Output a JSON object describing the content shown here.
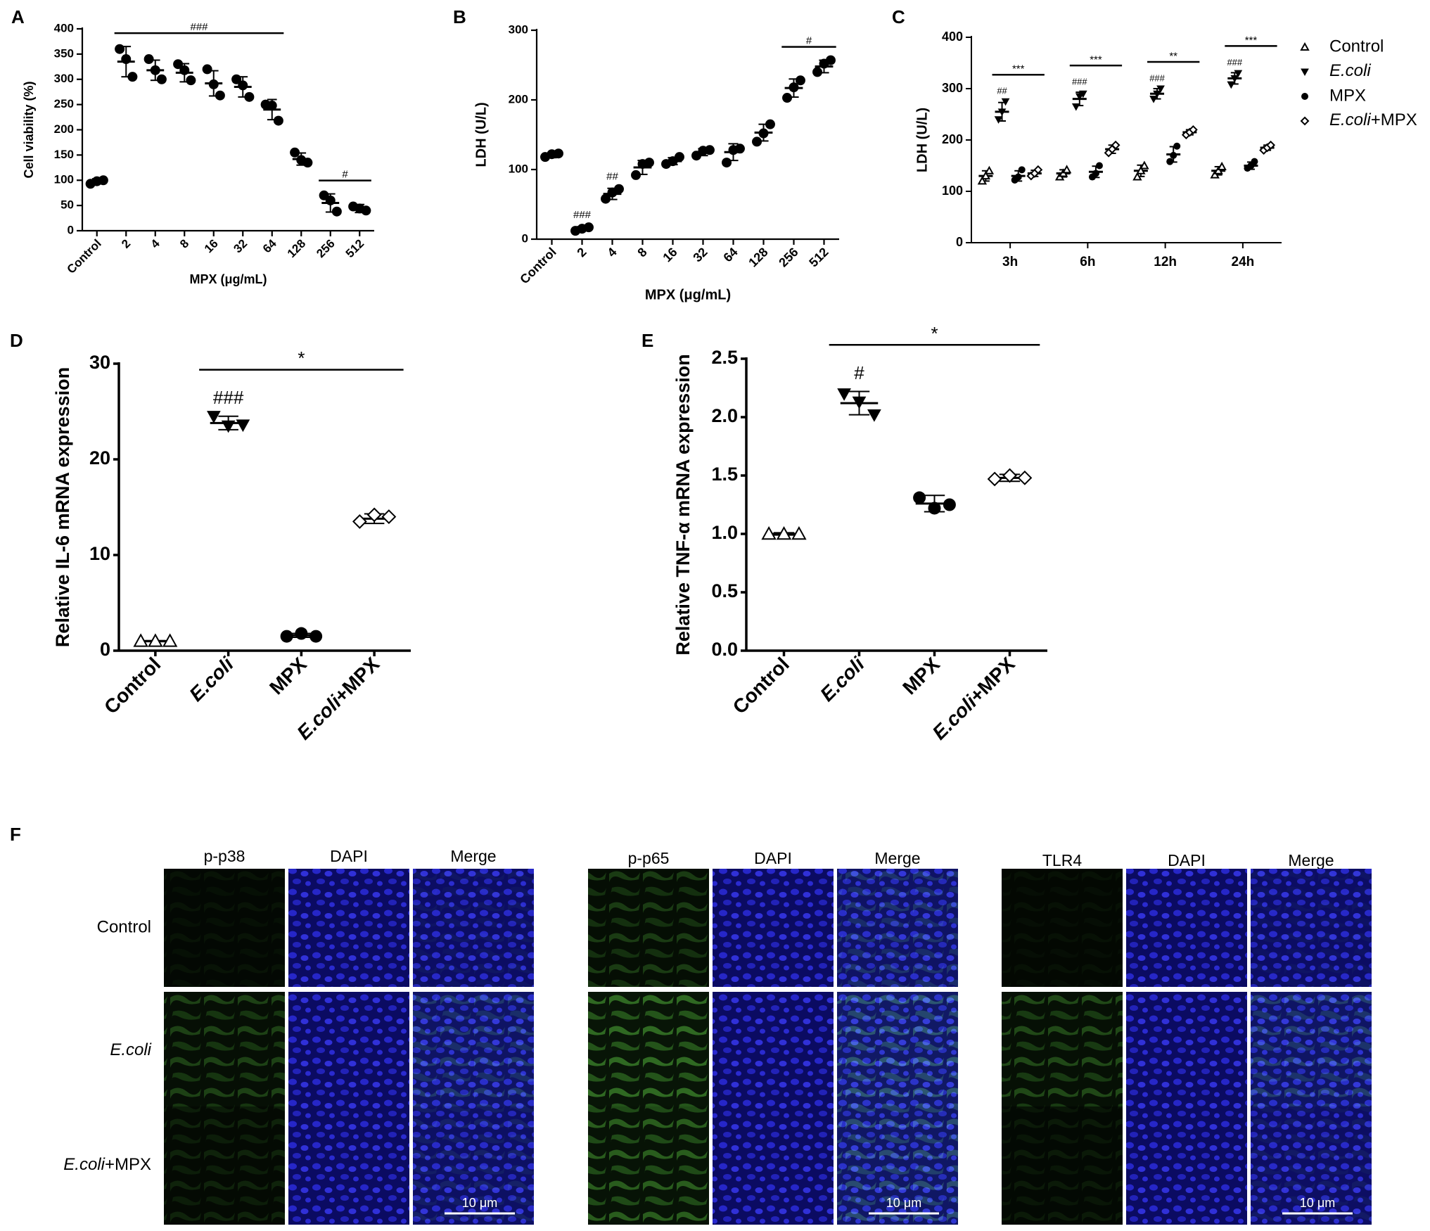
{
  "chart_data": [
    {
      "type": "dotplot",
      "label": "A",
      "ylabel": "Cell viability (%)",
      "xlabel": "MPX (μg/mL)",
      "categories": [
        "Control",
        "2",
        "4",
        "8",
        "16",
        "32",
        "64",
        "128",
        "256",
        "512"
      ],
      "values": [
        98,
        335,
        318,
        313,
        292,
        285,
        240,
        142,
        55,
        44
      ],
      "errors": [
        5,
        30,
        20,
        18,
        25,
        20,
        20,
        12,
        18,
        8
      ],
      "points": [
        [
          93,
          98,
          100
        ],
        [
          360,
          340,
          305
        ],
        [
          340,
          318,
          300
        ],
        [
          330,
          318,
          298
        ],
        [
          320,
          290,
          268
        ],
        [
          300,
          288,
          265
        ],
        [
          250,
          248,
          218
        ],
        [
          155,
          140,
          135
        ],
        [
          70,
          60,
          38
        ],
        [
          48,
          44,
          40
        ]
      ],
      "marker": "circle",
      "color": "#000000",
      "ylim": [
        0,
        400
      ],
      "yticks": [
        0,
        50,
        100,
        150,
        200,
        250,
        300,
        350,
        400
      ],
      "annotations": [
        {
          "text": "###",
          "from": 1,
          "to": 6
        },
        {
          "text": "#",
          "from": 8,
          "to": 9
        }
      ]
    },
    {
      "type": "dotplot",
      "label": "B",
      "ylabel": "LDH (U/L)",
      "xlabel": "MPX (μg/mL)",
      "categories": [
        "Control",
        "2",
        "4",
        "8",
        "16",
        "32",
        "64",
        "128",
        "256",
        "512"
      ],
      "values": [
        120,
        15,
        65,
        103,
        112,
        125,
        125,
        153,
        217,
        248
      ],
      "errors": [
        3,
        3,
        8,
        10,
        5,
        5,
        12,
        12,
        13,
        9
      ],
      "points": [
        [
          118,
          122,
          123
        ],
        [
          12,
          15,
          17
        ],
        [
          58,
          67,
          72
        ],
        [
          92,
          108,
          110
        ],
        [
          108,
          112,
          118
        ],
        [
          120,
          127,
          128
        ],
        [
          110,
          128,
          130
        ],
        [
          140,
          152,
          165
        ],
        [
          203,
          218,
          228
        ],
        [
          240,
          252,
          257
        ]
      ],
      "marker": "circle",
      "color": "#000000",
      "ylim": [
        0,
        300
      ],
      "yticks": [
        0,
        100,
        200,
        300
      ],
      "annotations": [
        {
          "text": "###",
          "from": 1
        },
        {
          "text": "##",
          "from": 2
        },
        {
          "text": "#",
          "from": 8,
          "to": 9
        }
      ]
    },
    {
      "type": "grouped_dotplot",
      "label": "C",
      "ylabel": "LDH (U/L)",
      "categories": [
        "3h",
        "6h",
        "12h",
        "24h"
      ],
      "series": [
        {
          "name": "Control",
          "marker": "triangle-open",
          "color": "#000000",
          "values": [
            130,
            135,
            140,
            140
          ],
          "errors": [
            10,
            7,
            11,
            8
          ],
          "points": [
            [
              120,
              130,
              140
            ],
            [
              128,
              135,
              142
            ],
            [
              128,
              140,
              150
            ],
            [
              132,
              140,
              148
            ]
          ]
        },
        {
          "name": "E.coli",
          "marker": "triangle-down",
          "color": "#000000",
          "values": [
            255,
            280,
            290,
            320
          ],
          "errors": [
            18,
            13,
            10,
            11
          ],
          "points": [
            [
              240,
              255,
              275
            ],
            [
              265,
              285,
              290
            ],
            [
              280,
              290,
              300
            ],
            [
              308,
              320,
              330
            ]
          ]
        },
        {
          "name": "MPX",
          "marker": "circle",
          "color": "#000000",
          "values": [
            130,
            138,
            172,
            150
          ],
          "errors": [
            10,
            11,
            15,
            7
          ],
          "points": [
            [
              122,
              128,
              142
            ],
            [
              128,
              135,
              150
            ],
            [
              158,
              170,
              188
            ],
            [
              145,
              150,
              158
            ]
          ]
        },
        {
          "name": "E.coli+MPX",
          "marker": "diamond-open",
          "color": "#000000",
          "values": [
            135,
            182,
            215,
            185
          ],
          "errors": [
            6,
            8,
            5,
            5
          ],
          "points": [
            [
              130,
              135,
              142
            ],
            [
              175,
              182,
              190
            ],
            [
              210,
              215,
              220
            ],
            [
              180,
              185,
              190
            ]
          ]
        }
      ],
      "ylim": [
        0,
        400
      ],
      "yticks": [
        0,
        100,
        200,
        300,
        400
      ],
      "annotations": [
        {
          "text": "##",
          "category": 0,
          "from": 1
        },
        {
          "text": "***",
          "category": 0,
          "from": 1,
          "to": 3
        },
        {
          "text": "###",
          "category": 1,
          "from": 1
        },
        {
          "text": "***",
          "category": 1,
          "from": 1,
          "to": 3
        },
        {
          "text": "###",
          "category": 2,
          "from": 1
        },
        {
          "text": "**",
          "category": 2,
          "from": 1,
          "to": 3
        },
        {
          "text": "###",
          "category": 3,
          "from": 1
        },
        {
          "text": "***",
          "category": 3,
          "from": 1,
          "to": 3
        }
      ]
    },
    {
      "type": "dotplot",
      "label": "D",
      "ylabel": "Relative IL-6 mRNA expression",
      "categories": [
        "Control",
        "E.coli",
        "MPX",
        "E.coli+MPX"
      ],
      "values": [
        1.0,
        23.8,
        1.6,
        13.8
      ],
      "errors": [
        0.05,
        0.7,
        0.2,
        0.5
      ],
      "points": [
        [
          1.0,
          1.0,
          1.0
        ],
        [
          24.5,
          23.5,
          23.6
        ],
        [
          1.5,
          1.8,
          1.5
        ],
        [
          13.5,
          14.2,
          14.0
        ]
      ],
      "markers": [
        "triangle-open",
        "triangle-down",
        "circle",
        "diamond-open"
      ],
      "color": "#000000",
      "ylim": [
        0,
        30
      ],
      "yticks": [
        0,
        10,
        20,
        30
      ],
      "annotations": [
        {
          "text": "###",
          "from": 1
        },
        {
          "text": "*",
          "from": 1,
          "to": 3
        }
      ]
    },
    {
      "type": "dotplot",
      "label": "E",
      "ylabel": "Relative TNF-α mRNA expression",
      "categories": [
        "Control",
        "E.coli",
        "MPX",
        "E.coli+MPX"
      ],
      "values": [
        1.0,
        2.12,
        1.26,
        1.48
      ],
      "errors": [
        0.01,
        0.1,
        0.07,
        0.03
      ],
      "points": [
        [
          1.0,
          1.0,
          1.0
        ],
        [
          2.2,
          2.13,
          2.02
        ],
        [
          1.31,
          1.22,
          1.25
        ],
        [
          1.47,
          1.5,
          1.48
        ]
      ],
      "markers": [
        "triangle-open",
        "triangle-down",
        "circle",
        "diamond-open"
      ],
      "color": "#000000",
      "ylim": [
        0,
        2.5
      ],
      "yticks": [
        {
          "value": 0,
          "label": "0.0"
        },
        0.5,
        {
          "value": 1,
          "label": "1.0"
        },
        1.5,
        {
          "value": 2,
          "label": "2.0"
        },
        2.5
      ],
      "annotations": [
        {
          "text": "#",
          "from": 1
        },
        {
          "text": "*",
          "from": 1,
          "to": 3
        }
      ]
    }
  ],
  "image_panel": {
    "label": "F",
    "groups": [
      [
        "p-p38",
        "DAPI",
        "Merge"
      ],
      [
        "p-p65",
        "DAPI",
        "Merge"
      ],
      [
        "TLR4",
        "DAPI",
        "Merge"
      ]
    ],
    "rows": [
      "Control",
      "E.coli",
      "E.coli+MPX"
    ],
    "scale_bar": "10 μm"
  }
}
